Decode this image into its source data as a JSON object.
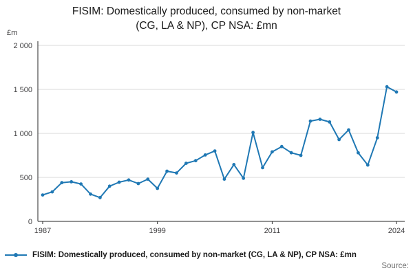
{
  "title": {
    "line1": "FISIM: Domestically produced, consumed by non-market",
    "line2": "(CG, LA & NP), CP NSA: £mn"
  },
  "y_unit": "£m",
  "legend": {
    "label": "FISIM: Domestically produced, consumed by non-market (CG, LA & NP), CP NSA: £mn"
  },
  "source_label": "Source:",
  "colors": {
    "line": "#1f78b4",
    "grid": "#d9d9d9",
    "axis": "#262626",
    "tick_text": "#414042"
  },
  "chart_data": {
    "type": "line",
    "title": "FISIM: Domestically produced, consumed by non-market (CG, LA & NP), CP NSA: £mn",
    "xlabel": "",
    "ylabel": "£m",
    "ylim": [
      0,
      2000
    ],
    "yticks": [
      0,
      500,
      1000,
      1500,
      2000
    ],
    "ytick_labels": [
      "0",
      "500",
      "1 000",
      "1 500",
      "2 000"
    ],
    "xticks": [
      1987,
      1999,
      2011,
      2024
    ],
    "grid": "horizontal",
    "legend_position": "bottom",
    "x": [
      1987,
      1988,
      1989,
      1990,
      1991,
      1992,
      1993,
      1994,
      1995,
      1996,
      1997,
      1998,
      1999,
      2000,
      2001,
      2002,
      2003,
      2004,
      2005,
      2006,
      2007,
      2008,
      2009,
      2010,
      2011,
      2012,
      2013,
      2014,
      2015,
      2016,
      2017,
      2018,
      2019,
      2020,
      2021,
      2022,
      2023,
      2024
    ],
    "series": [
      {
        "name": "FISIM: Domestically produced, consumed by non-market (CG, LA & NP), CP NSA: £mn",
        "values": [
          300,
          335,
          440,
          450,
          425,
          310,
          270,
          400,
          445,
          470,
          430,
          480,
          375,
          570,
          550,
          660,
          690,
          755,
          800,
          480,
          645,
          490,
          1010,
          610,
          790,
          850,
          780,
          750,
          1140,
          1160,
          1130,
          930,
          1040,
          780,
          640,
          950,
          1530,
          1470
        ]
      }
    ]
  }
}
